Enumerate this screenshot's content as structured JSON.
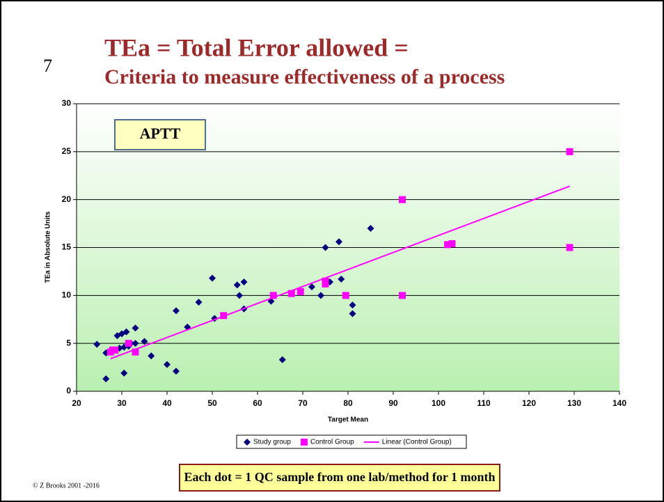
{
  "slide_number": "7",
  "footer": "© Z Brooks 2001 -2016",
  "chart_data": {
    "type": "scatter",
    "title": "TEa = Total Error allowed =",
    "subtitle": "Criteria to measure effectiveness of a process",
    "xlabel": "Target Mean",
    "ylabel": "TEa in Absolute Units",
    "xlim": [
      20,
      140
    ],
    "xticks": [
      20,
      30,
      40,
      50,
      60,
      70,
      80,
      90,
      100,
      110,
      120,
      130,
      140
    ],
    "ylim": [
      0,
      30
    ],
    "yticks": [
      0,
      5,
      10,
      15,
      20,
      25,
      30
    ],
    "grid": true,
    "legend": "bottom",
    "annotations": [
      "APTT",
      "Each dot = 1 QC sample from one lab/method for 1 month"
    ],
    "series": [
      {
        "name": "Study group",
        "color": "#000080",
        "marker": "diamond",
        "x": [
          24.5,
          26.5,
          26.5,
          28,
          29,
          29.5,
          30,
          30.5,
          31,
          30.5,
          31.5,
          32,
          33,
          33,
          35,
          36.5,
          40,
          42,
          42,
          44.5,
          47,
          50,
          50.5,
          55.5,
          56,
          57,
          57,
          63,
          65.5,
          72,
          74,
          75,
          76,
          78,
          78.5,
          81,
          81,
          85
        ],
        "values": [
          4.9,
          4.0,
          1.3,
          4.3,
          5.8,
          4.5,
          6.0,
          4.6,
          6.2,
          1.9,
          4.7,
          5.0,
          6.6,
          5.0,
          5.2,
          3.7,
          2.8,
          8.4,
          2.1,
          6.7,
          9.3,
          11.8,
          7.6,
          11.1,
          10.0,
          11.4,
          8.6,
          9.4,
          3.3,
          10.9,
          10.0,
          15.0,
          11.4,
          15.6,
          11.7,
          9.0,
          8.1,
          17.0
        ]
      },
      {
        "name": "Control Group",
        "color": "#ff00ff",
        "marker": "square",
        "x": [
          27.5,
          28,
          28.5,
          31.5,
          33,
          52.5,
          63.5,
          67.5,
          69.5,
          75,
          75,
          79.5,
          92,
          92,
          102,
          103,
          129,
          129
        ],
        "values": [
          4.1,
          4.3,
          4.3,
          5.0,
          4.1,
          7.9,
          10.0,
          10.2,
          10.4,
          11.2,
          11.5,
          10.0,
          20.0,
          10.0,
          15.3,
          15.4,
          25.0,
          15.0
        ]
      },
      {
        "name": "Linear (Control Group)",
        "color": "#ff00ff",
        "marker": "line",
        "x": [
          27.5,
          129
        ],
        "values": [
          3.4,
          21.4
        ]
      }
    ]
  }
}
